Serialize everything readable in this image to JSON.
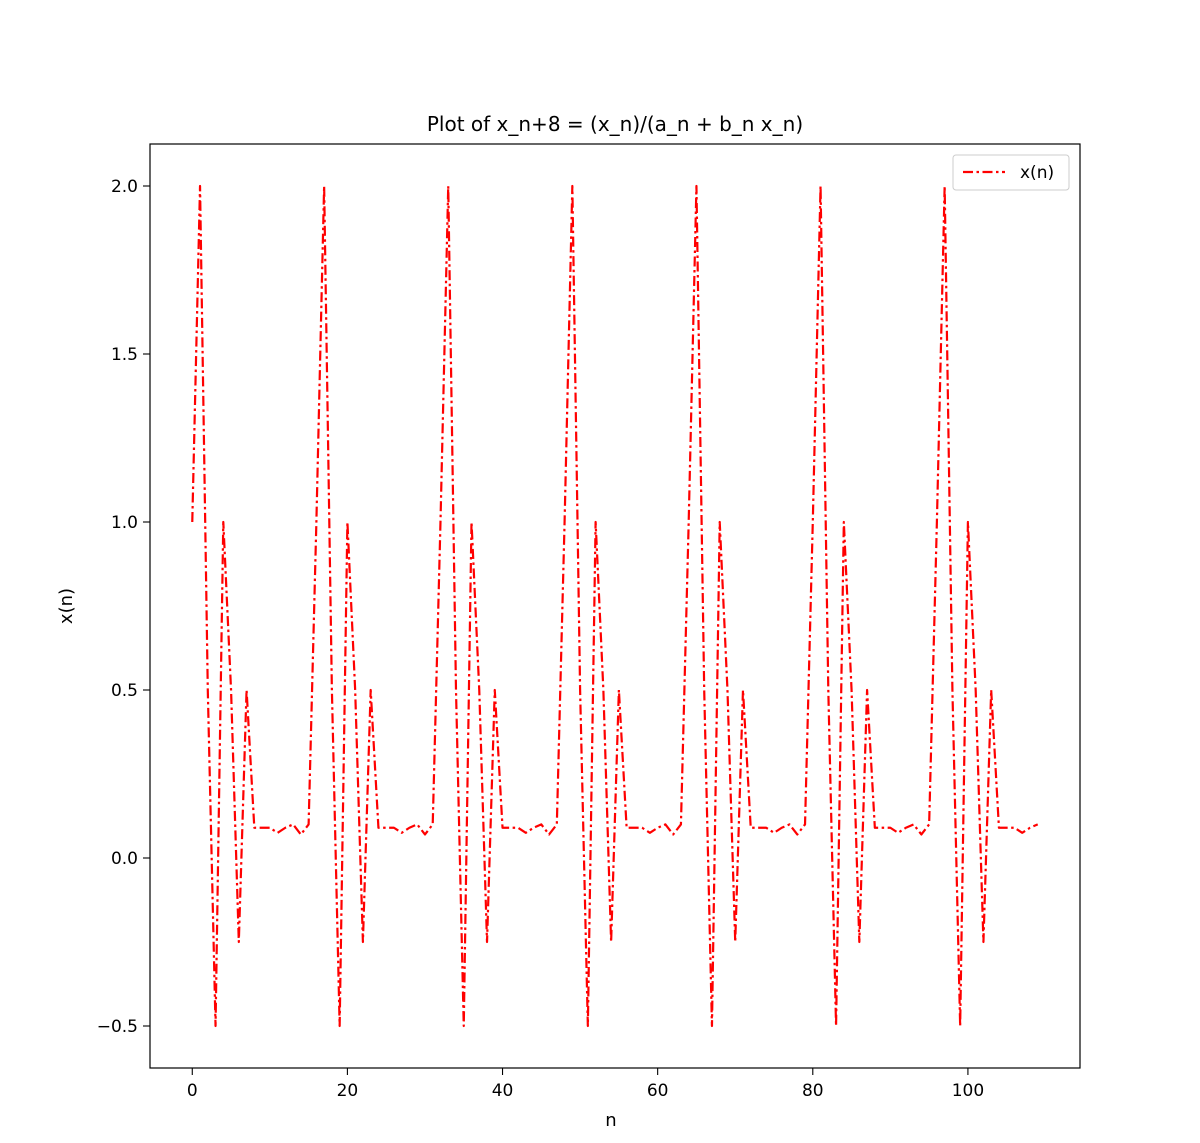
{
  "chart_data": {
    "type": "line",
    "title": "Plot of x_n+8 = (x_n)/(a_n + b_n x_n)",
    "xlabel": "n",
    "ylabel": "x(n)",
    "xlim": [
      -5.45,
      114.45
    ],
    "ylim": [
      -0.625,
      2.125
    ],
    "xticks": [
      0,
      20,
      40,
      60,
      80,
      100
    ],
    "xtick_labels": [
      "0",
      "20",
      "40",
      "60",
      "80",
      "100"
    ],
    "yticks": [
      -0.5,
      0.0,
      0.5,
      1.0,
      1.5,
      2.0
    ],
    "ytick_labels": [
      "−0.5",
      "0.0",
      "0.5",
      "1.0",
      "1.5",
      "2.0"
    ],
    "grid": false,
    "legend_position": "upper right",
    "series": [
      {
        "name": "x(n)",
        "color": "#ff0000",
        "linestyle": "dashdot",
        "x": [
          0,
          1,
          2,
          3,
          4,
          5,
          6,
          7,
          8,
          9,
          10,
          11,
          12,
          13,
          14,
          15,
          16,
          17,
          18,
          19,
          20,
          21,
          22,
          23,
          24,
          25,
          26,
          27,
          28,
          29,
          30,
          31,
          32,
          33,
          34,
          35,
          36,
          37,
          38,
          39,
          40,
          41,
          42,
          43,
          44,
          45,
          46,
          47,
          48,
          49,
          50,
          51,
          52,
          53,
          54,
          55,
          56,
          57,
          58,
          59,
          60,
          61,
          62,
          63,
          64,
          65,
          66,
          67,
          68,
          69,
          70,
          71,
          72,
          73,
          74,
          75,
          76,
          77,
          78,
          79,
          80,
          81,
          82,
          83,
          84,
          85,
          86,
          87,
          88,
          89,
          90,
          91,
          92,
          93,
          94,
          95,
          96,
          97,
          98,
          99,
          100,
          101,
          102,
          103,
          104,
          105,
          106,
          107,
          108,
          109
        ],
        "y": [
          1.0,
          2.0,
          0.5,
          -0.5,
          1.0,
          0.5,
          -0.25,
          0.5,
          0.09,
          0.09,
          0.09,
          0.075,
          0.09,
          0.1,
          0.07,
          0.1,
          1.0,
          2.0,
          0.5,
          -0.5,
          1.0,
          0.5,
          -0.25,
          0.5,
          0.09,
          0.09,
          0.09,
          0.075,
          0.09,
          0.1,
          0.07,
          0.1,
          1.0,
          2.0,
          0.5,
          -0.5,
          1.0,
          0.5,
          -0.25,
          0.5,
          0.09,
          0.09,
          0.09,
          0.075,
          0.09,
          0.1,
          0.07,
          0.1,
          1.0,
          2.0,
          0.5,
          -0.5,
          1.0,
          0.5,
          -0.25,
          0.5,
          0.09,
          0.09,
          0.09,
          0.075,
          0.09,
          0.1,
          0.07,
          0.1,
          1.0,
          2.0,
          0.5,
          -0.5,
          1.0,
          0.5,
          -0.25,
          0.5,
          0.09,
          0.09,
          0.09,
          0.075,
          0.09,
          0.1,
          0.07,
          0.1,
          1.0,
          2.0,
          0.5,
          -0.5,
          1.0,
          0.5,
          -0.25,
          0.5,
          0.09,
          0.09,
          0.09,
          0.075,
          0.09,
          0.1,
          0.07,
          0.1,
          1.0,
          2.0,
          0.5,
          -0.5,
          1.0,
          0.5,
          -0.25,
          0.5,
          0.09,
          0.09,
          0.09,
          0.075,
          0.09,
          0.1
        ]
      }
    ]
  }
}
